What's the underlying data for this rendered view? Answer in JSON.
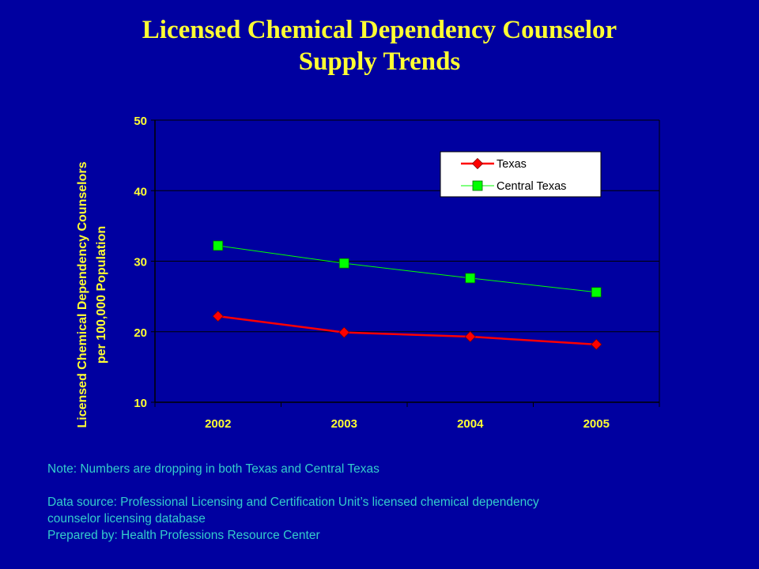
{
  "title": {
    "line1": "Licensed Chemical Dependency Counselor",
    "line2": "Supply Trends"
  },
  "chart_data": {
    "type": "line",
    "categories": [
      "2002",
      "2003",
      "2004",
      "2005"
    ],
    "series": [
      {
        "name": "Texas",
        "values": [
          22.2,
          19.9,
          19.3,
          18.2
        ],
        "color": "#ff0000",
        "marker": "diamond"
      },
      {
        "name": "Central Texas",
        "values": [
          32.2,
          29.7,
          27.6,
          25.6
        ],
        "color": "#00ff00",
        "marker": "square"
      }
    ],
    "ylabel_line1": "Licensed Chemical Dependency Counselors",
    "ylabel_line2": "per 100,000 Population",
    "ylim": [
      10,
      50
    ],
    "yticks": [
      10,
      20,
      30,
      40,
      50
    ],
    "grid": true,
    "legend_position": "top-right"
  },
  "notes": {
    "note": "Note: Numbers are dropping in both Texas and Central Texas",
    "source_line1": "Data source: Professional Licensing and Certification Unit’s licensed chemical dependency",
    "source_line2": "counselor licensing database",
    "prepared_by": "Prepared by: Health Professions Resource Center"
  },
  "colors": {
    "background": "#0000a0",
    "title": "#ffff33",
    "axis_text": "#ffff33",
    "notes_text": "#33cccc"
  }
}
